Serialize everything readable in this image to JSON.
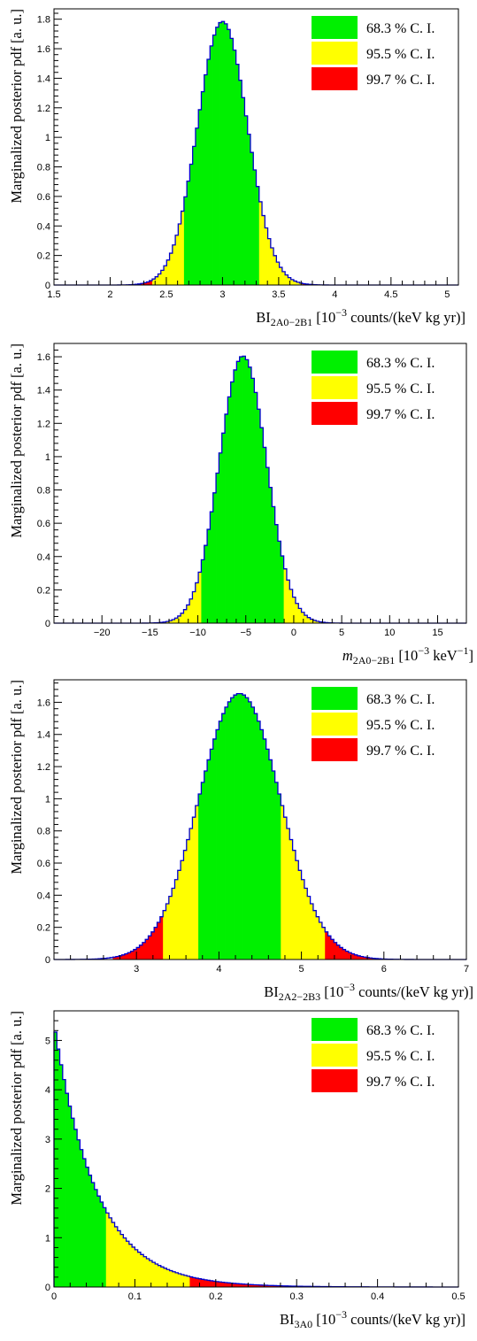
{
  "colors": {
    "ci_68": "#00f000",
    "ci_95": "#ffff00",
    "ci_99": "#ff0000",
    "outline": "#0000cc",
    "axis": "#000000"
  },
  "chart_data": [
    {
      "type": "area",
      "shape": "gaussian",
      "mean": 3.0,
      "sigma": 0.223,
      "peak": 1.785,
      "xlim": [
        1.5,
        5.1
      ],
      "ylim": [
        0,
        1.87
      ],
      "xticks_major": [
        1.5,
        2,
        2.5,
        3,
        3.5,
        4,
        4.5,
        5
      ],
      "xtick_labels": [
        "1.5",
        "2",
        "2.5",
        "3",
        "3.5",
        "4",
        "4.5",
        "5"
      ],
      "yticks_major": [
        0,
        0.2,
        0.4,
        0.6,
        0.8,
        1,
        1.2,
        1.4,
        1.6,
        1.8
      ],
      "ytick_labels": [
        "0",
        "0.2",
        "0.4",
        "0.6",
        "0.8",
        "1",
        "1.2",
        "1.4",
        "1.6",
        "1.8"
      ],
      "regions": {
        "ci_68": [
          2.67,
          3.33
        ],
        "ci_95": [
          2.38,
          3.71
        ],
        "ci_99": [
          2.1,
          4.05
        ]
      },
      "xlabel": {
        "base": "BI",
        "sub": "2A0−2B1",
        "rest_before": " [10",
        "sup": "−3",
        "rest_after": " counts/(keV kg yr)]"
      },
      "ylabel": "Marginalized posterior pdf [a. u.]",
      "legend": [
        "68.3 % C. I.",
        "95.5 % C. I.",
        "99.7 % C. I."
      ],
      "legend_position": "top-right"
    },
    {
      "type": "area",
      "shape": "gaussian",
      "mean": -5.3,
      "sigma": 2.47,
      "peak": 1.605,
      "xlim": [
        -25,
        18
      ],
      "ylim": [
        0,
        1.68
      ],
      "xticks_major": [
        -20,
        -15,
        -10,
        -5,
        0,
        5,
        10,
        15
      ],
      "xtick_labels": [
        "−20",
        "−15",
        "−10",
        "−5",
        "0",
        "5",
        "10",
        "15"
      ],
      "yticks_major": [
        0,
        0.2,
        0.4,
        0.6,
        0.8,
        1,
        1.2,
        1.4,
        1.6
      ],
      "ytick_labels": [
        "0",
        "0.2",
        "0.4",
        "0.6",
        "0.8",
        "1",
        "1.2",
        "1.4",
        "1.6"
      ],
      "regions": {
        "ci_68": [
          -9.7,
          -0.9
        ],
        "ci_95": [
          -13.6,
          3.5
        ],
        "ci_99": [
          -17,
          7.5
        ]
      },
      "xlabel": {
        "base": "m",
        "sub": "2A0−2B1",
        "rest_before": " [10",
        "sup": "−3",
        "rest_after": " keV",
        "sup2": "−1",
        "close": "]"
      },
      "ylabel": "Marginalized posterior pdf [a. u.]",
      "legend": [
        "68.3 % C. I.",
        "95.5 % C. I.",
        "99.7 % C. I."
      ],
      "legend_position": "top-right"
    },
    {
      "type": "area",
      "shape": "gaussian",
      "mean": 4.25,
      "sigma": 0.495,
      "peak": 1.655,
      "xlim": [
        2,
        7
      ],
      "ylim": [
        0,
        1.74
      ],
      "xticks_major": [
        3,
        4,
        5,
        6,
        7
      ],
      "xtick_labels": [
        "3",
        "4",
        "5",
        "6",
        "7"
      ],
      "yticks_major": [
        0,
        0.2,
        0.4,
        0.6,
        0.8,
        1,
        1.2,
        1.4,
        1.6
      ],
      "ytick_labels": [
        "0",
        "0.2",
        "0.4",
        "0.6",
        "0.8",
        "1",
        "1.2",
        "1.4",
        "1.6"
      ],
      "regions": {
        "ci_68": [
          3.76,
          4.76
        ],
        "ci_95": [
          3.33,
          5.29
        ],
        "ci_99": [
          2.7,
          5.9
        ]
      },
      "xlabel": {
        "base": "BI",
        "sub": "2A2−2B3",
        "rest_before": " [10",
        "sup": "−3",
        "rest_after": " counts/(keV kg yr)]"
      },
      "ylabel": "Marginalized posterior pdf [a. u.]",
      "legend": [
        "68.3 % C. I.",
        "95.5 % C. I.",
        "99.7 % C. I."
      ],
      "legend_position": "top-right"
    },
    {
      "type": "area",
      "shape": "exponential",
      "scale": 0.052,
      "peak": 5.35,
      "xlim": [
        0,
        0.5
      ],
      "ylim": [
        0,
        5.6
      ],
      "xticks_major": [
        0,
        0.1,
        0.2,
        0.3,
        0.4,
        0.5
      ],
      "xtick_labels": [
        "0",
        "0.1",
        "0.2",
        "0.3",
        "0.4",
        "0.5"
      ],
      "yticks_major": [
        0,
        1,
        2,
        3,
        4,
        5
      ],
      "ytick_labels": [
        "0",
        "1",
        "2",
        "3",
        "4",
        "5"
      ],
      "regions": {
        "ci_68": [
          0,
          0.065
        ],
        "ci_95": [
          0,
          0.167
        ],
        "ci_99": [
          0,
          0.3
        ]
      },
      "xlabel": {
        "base": "BI",
        "sub": "3A0",
        "rest_before": " [10",
        "sup": "−3",
        "rest_after": " counts/(keV kg yr)]"
      },
      "ylabel": "Marginalized posterior pdf [a. u.]",
      "legend": [
        "68.3 % C. I.",
        "95.5 % C. I.",
        "99.7 % C. I."
      ],
      "legend_position": "top-right"
    }
  ]
}
